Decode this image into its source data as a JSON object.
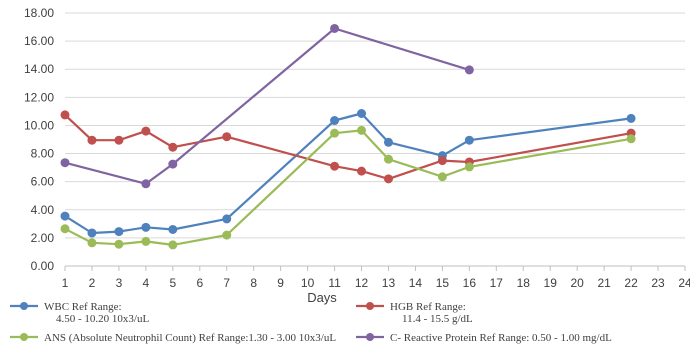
{
  "chart_data": {
    "type": "line",
    "xlabel": "Days",
    "ylabel": "",
    "xlim": [
      1,
      24
    ],
    "ylim": [
      0,
      18
    ],
    "x_ticks": [
      1,
      2,
      3,
      4,
      5,
      6,
      7,
      8,
      9,
      10,
      11,
      12,
      13,
      14,
      15,
      16,
      17,
      18,
      19,
      20,
      21,
      22,
      23,
      24
    ],
    "y_ticks": [
      "0.00",
      "2.00",
      "4.00",
      "6.00",
      "8.00",
      "10.00",
      "12.00",
      "14.00",
      "16.00",
      "18.00"
    ],
    "grid": "horizontal",
    "legend_position": "bottom",
    "series": [
      {
        "name": "WBC Ref Range: 4.50 - 10.20 10x3/uL",
        "legend_lines": [
          "WBC Ref Range:",
          "4.50 - 10.20 10x3/uL"
        ],
        "color": "#4f81bd",
        "points": [
          [
            1,
            3.55
          ],
          [
            2,
            2.35
          ],
          [
            3,
            2.45
          ],
          [
            4,
            2.75
          ],
          [
            5,
            2.6
          ],
          [
            7,
            3.35
          ],
          [
            11,
            10.35
          ],
          [
            12,
            10.85
          ],
          [
            13,
            8.8
          ],
          [
            15,
            7.85
          ],
          [
            16,
            8.95
          ],
          [
            22,
            10.5
          ]
        ]
      },
      {
        "name": "HGB Ref Range: 11.4 - 15.5 g/dL",
        "legend_lines": [
          "HGB Ref Range:",
          "11.4 - 15.5 g/dL"
        ],
        "color": "#c0504d",
        "points": [
          [
            1,
            10.75
          ],
          [
            2,
            8.95
          ],
          [
            3,
            8.95
          ],
          [
            4,
            9.6
          ],
          [
            5,
            8.45
          ],
          [
            7,
            9.2
          ],
          [
            11,
            7.1
          ],
          [
            12,
            6.75
          ],
          [
            13,
            6.2
          ],
          [
            15,
            7.5
          ],
          [
            16,
            7.4
          ],
          [
            22,
            9.45
          ]
        ]
      },
      {
        "name": "ANS (Absolute Neutrophil Count) Ref Range:1.30 - 3.00 10x3/uL",
        "legend_lines": [
          "ANS (Absolute Neutrophil  Count) Ref Range:1.30 - 3.00 10x3/uL"
        ],
        "color": "#9bbb59",
        "points": [
          [
            1,
            2.65
          ],
          [
            2,
            1.65
          ],
          [
            3,
            1.55
          ],
          [
            4,
            1.75
          ],
          [
            5,
            1.5
          ],
          [
            7,
            2.2
          ],
          [
            11,
            9.45
          ],
          [
            12,
            9.65
          ],
          [
            13,
            7.6
          ],
          [
            15,
            6.35
          ],
          [
            16,
            7.05
          ],
          [
            22,
            9.05
          ]
        ]
      },
      {
        "name": "C-Reactive Protein Ref Range: 0.50 - 1.00 mg/dL",
        "legend_lines": [
          "C- Reactive Protein  Ref Range:  0.50 - 1.00 mg/dL"
        ],
        "color": "#8064a2",
        "points": [
          [
            1,
            7.35
          ],
          [
            4,
            5.85
          ],
          [
            5,
            7.25
          ],
          [
            11,
            16.9
          ],
          [
            16,
            13.95
          ]
        ]
      }
    ]
  }
}
